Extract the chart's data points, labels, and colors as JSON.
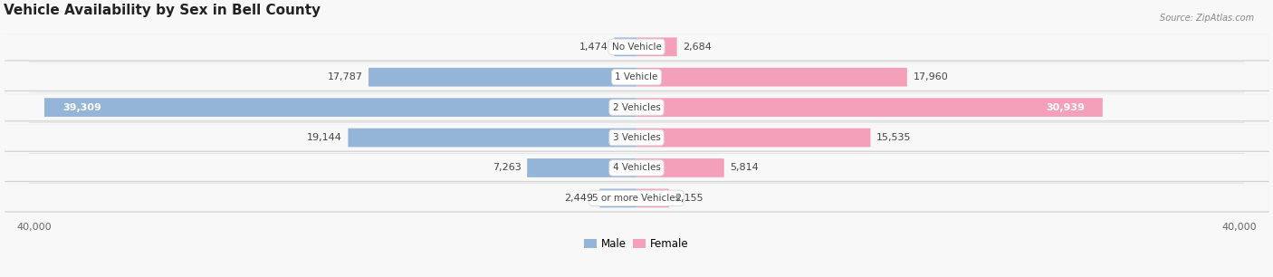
{
  "title": "Vehicle Availability by Sex in Bell County",
  "source": "Source: ZipAtlas.com",
  "categories": [
    "No Vehicle",
    "1 Vehicle",
    "2 Vehicles",
    "3 Vehicles",
    "4 Vehicles",
    "5 or more Vehicles"
  ],
  "male_values": [
    1474,
    17787,
    39309,
    19144,
    7263,
    2449
  ],
  "female_values": [
    2684,
    17960,
    30939,
    15535,
    5814,
    2155
  ],
  "male_color": "#94b4d8",
  "female_color": "#f5a0bb",
  "male_color_2": "#e8353b",
  "row_bg_light": "#f0f0f0",
  "row_bg_dark": "#e2e2e2",
  "row_bg_alt": "#e8e8e8",
  "max_val": 40000,
  "legend_male": "Male",
  "legend_female": "Female",
  "title_fontsize": 11,
  "label_fontsize": 8,
  "category_fontsize": 7.5,
  "axis_label_fontsize": 8,
  "fig_bg": "#f8f8f8"
}
